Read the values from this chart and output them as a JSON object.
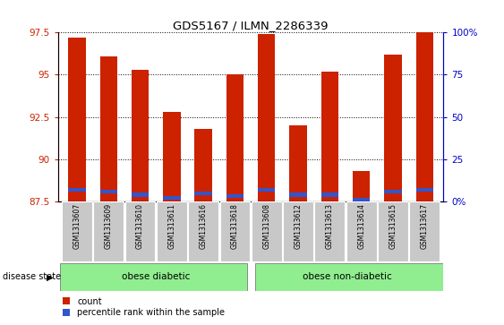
{
  "title": "GDS5167 / ILMN_2286339",
  "samples": [
    "GSM1313607",
    "GSM1313609",
    "GSM1313610",
    "GSM1313611",
    "GSM1313616",
    "GSM1313618",
    "GSM1313608",
    "GSM1313612",
    "GSM1313613",
    "GSM1313614",
    "GSM1313615",
    "GSM1313617"
  ],
  "red_heights": [
    97.2,
    96.1,
    95.3,
    92.8,
    91.8,
    95.0,
    97.4,
    92.0,
    95.2,
    89.3,
    96.2,
    97.5
  ],
  "blue_pct": [
    7,
    6,
    4,
    2,
    5,
    3,
    7,
    4,
    4,
    1,
    6,
    7
  ],
  "ymin": 87.5,
  "ymax": 97.5,
  "y2min": 0,
  "y2max": 100,
  "yticks": [
    87.5,
    90.0,
    92.5,
    95.0,
    97.5
  ],
  "ytick_labels": [
    "87.5",
    "90",
    "92.5",
    "95",
    "97.5"
  ],
  "y2ticks": [
    0,
    25,
    50,
    75,
    100
  ],
  "y2tick_labels": [
    "0%",
    "25",
    "50",
    "75",
    "100%"
  ],
  "group1_label": "obese diabetic",
  "group1_count": 6,
  "group2_label": "obese non-diabetic",
  "group2_count": 6,
  "disease_label": "disease state",
  "bar_color_red": "#cc2200",
  "bar_color_blue": "#3355cc",
  "bar_width": 0.55,
  "legend_count": "count",
  "legend_pct": "percentile rank within the sample",
  "label_color_left": "#cc2200",
  "label_color_right": "#0000cc",
  "group_bg": "#90ee90",
  "tick_bg": "#c8c8c8"
}
